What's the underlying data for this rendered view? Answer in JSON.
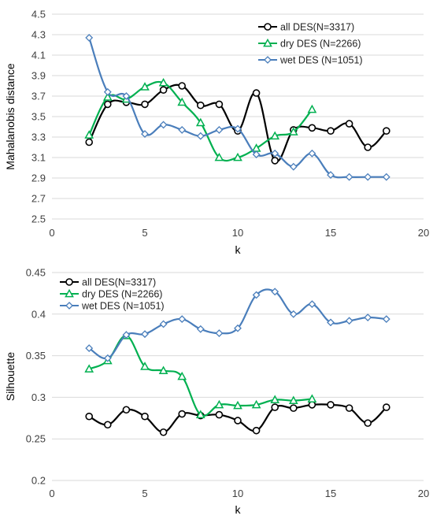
{
  "chart_data": [
    {
      "type": "line",
      "title": "",
      "xlabel": "k",
      "ylabel": "Mahalanobis distance",
      "xlim": [
        0,
        20
      ],
      "ylim": [
        2.5,
        4.5
      ],
      "xticks": [
        0,
        5,
        10,
        15,
        20
      ],
      "yticks": [
        2.5,
        2.7,
        2.9,
        3.1,
        3.3,
        3.5,
        3.7,
        3.9,
        4.1,
        4.3,
        4.5
      ],
      "ytick_labels": [
        "2.5",
        "2.7",
        "2.9",
        "3.1",
        "3.3",
        "3.5",
        "3.7",
        "3.9",
        "4.1",
        "4.3",
        "4.5"
      ],
      "grid": "horizontal",
      "legend": "top-right",
      "series": [
        {
          "name": "all DES(N=3317)",
          "color": "#000000",
          "marker": "circle",
          "x": [
            2,
            3,
            4,
            5,
            6,
            7,
            8,
            9,
            10,
            11,
            12,
            13,
            14,
            15,
            16,
            17,
            18
          ],
          "values": [
            3.25,
            3.62,
            3.64,
            3.62,
            3.76,
            3.8,
            3.61,
            3.62,
            3.36,
            3.73,
            3.07,
            3.37,
            3.39,
            3.36,
            3.43,
            3.2,
            3.36
          ]
        },
        {
          "name": "dry DES (N=2266)",
          "color": "#00b050",
          "marker": "triangle",
          "x": [
            2,
            3,
            4,
            5,
            6,
            7,
            8,
            9,
            10,
            11,
            12,
            13,
            14
          ],
          "values": [
            3.32,
            3.69,
            3.67,
            3.79,
            3.83,
            3.64,
            3.44,
            3.1,
            3.1,
            3.19,
            3.31,
            3.35,
            3.57
          ]
        },
        {
          "name": "wet DES (N=1051)",
          "color": "#4a7ebb",
          "marker": "diamond",
          "x": [
            2,
            3,
            4,
            5,
            6,
            7,
            8,
            9,
            10,
            11,
            12,
            13,
            14,
            15,
            16,
            17,
            18
          ],
          "values": [
            4.27,
            3.74,
            3.7,
            3.33,
            3.42,
            3.37,
            3.31,
            3.37,
            3.38,
            3.13,
            3.14,
            3.01,
            3.14,
            2.93,
            2.91,
            2.91,
            2.91
          ]
        }
      ]
    },
    {
      "type": "line",
      "title": "",
      "xlabel": "k",
      "ylabel": "Silhouette",
      "xlim": [
        0,
        20
      ],
      "ylim": [
        0.2,
        0.45
      ],
      "xticks": [
        0,
        5,
        10,
        15,
        20
      ],
      "yticks": [
        0.2,
        0.25,
        0.3,
        0.35,
        0.4,
        0.45
      ],
      "ytick_labels": [
        "0.2",
        "0.25",
        "0.3",
        "0.35",
        "0.4",
        "0.45"
      ],
      "grid": "horizontal",
      "legend": "top-left",
      "series": [
        {
          "name": "all DES(N=3317)",
          "color": "#000000",
          "marker": "circle",
          "x": [
            2,
            3,
            4,
            5,
            6,
            7,
            8,
            9,
            10,
            11,
            12,
            13,
            14,
            15,
            16,
            17,
            18
          ],
          "values": [
            0.277,
            0.267,
            0.285,
            0.277,
            0.258,
            0.28,
            0.278,
            0.279,
            0.272,
            0.26,
            0.288,
            0.287,
            0.291,
            0.291,
            0.287,
            0.269,
            0.288
          ]
        },
        {
          "name": "dry DES (N=2266)",
          "color": "#00b050",
          "marker": "triangle",
          "x": [
            2,
            3,
            4,
            5,
            6,
            7,
            8,
            9,
            10,
            11,
            12,
            13,
            14
          ],
          "values": [
            0.334,
            0.344,
            0.374,
            0.337,
            0.332,
            0.325,
            0.279,
            0.291,
            0.29,
            0.291,
            0.297,
            0.296,
            0.298
          ]
        },
        {
          "name": "wet DES (N=1051)",
          "color": "#4a7ebb",
          "marker": "diamond",
          "x": [
            2,
            3,
            4,
            5,
            6,
            7,
            8,
            9,
            10,
            11,
            12,
            13,
            14,
            15,
            16,
            17,
            18
          ],
          "values": [
            0.359,
            0.347,
            0.375,
            0.376,
            0.388,
            0.394,
            0.382,
            0.377,
            0.383,
            0.423,
            0.427,
            0.4,
            0.412,
            0.39,
            0.392,
            0.396,
            0.394
          ]
        }
      ]
    }
  ]
}
